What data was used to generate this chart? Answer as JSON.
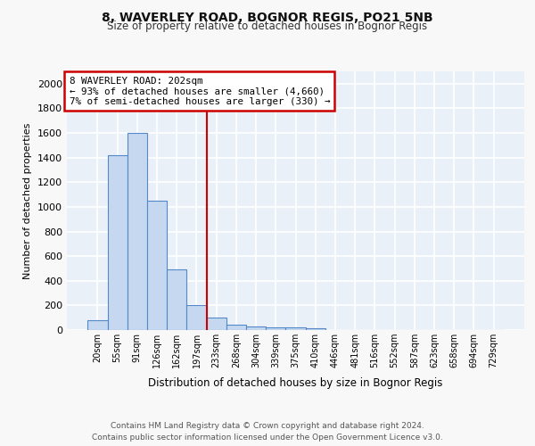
{
  "title": "8, WAVERLEY ROAD, BOGNOR REGIS, PO21 5NB",
  "subtitle": "Size of property relative to detached houses in Bognor Regis",
  "xlabel": "Distribution of detached houses by size in Bognor Regis",
  "ylabel": "Number of detached properties",
  "bar_labels": [
    "20sqm",
    "55sqm",
    "91sqm",
    "126sqm",
    "162sqm",
    "197sqm",
    "233sqm",
    "268sqm",
    "304sqm",
    "339sqm",
    "375sqm",
    "410sqm",
    "446sqm",
    "481sqm",
    "516sqm",
    "552sqm",
    "587sqm",
    "623sqm",
    "658sqm",
    "694sqm",
    "729sqm"
  ],
  "bar_heights": [
    80,
    1420,
    1600,
    1050,
    490,
    205,
    100,
    40,
    30,
    20,
    20,
    15,
    0,
    0,
    0,
    0,
    0,
    0,
    0,
    0,
    0
  ],
  "bar_color": "#c5d8f0",
  "bar_edge_color": "#5588c8",
  "ylim": [
    0,
    2100
  ],
  "yticks": [
    0,
    200,
    400,
    600,
    800,
    1000,
    1200,
    1400,
    1600,
    1800,
    2000
  ],
  "vline_x": 5.5,
  "vline_color": "#cc0000",
  "annotation_text": "8 WAVERLEY ROAD: 202sqm\n← 93% of detached houses are smaller (4,660)\n7% of semi-detached houses are larger (330) →",
  "annotation_box_color": "#ffffff",
  "annotation_box_edge": "#cc0000",
  "footer_text": "Contains HM Land Registry data © Crown copyright and database right 2024.\nContains public sector information licensed under the Open Government Licence v3.0.",
  "background_color": "#eaf0f8",
  "fig_background_color": "#f8f8f8",
  "grid_color": "#ffffff"
}
